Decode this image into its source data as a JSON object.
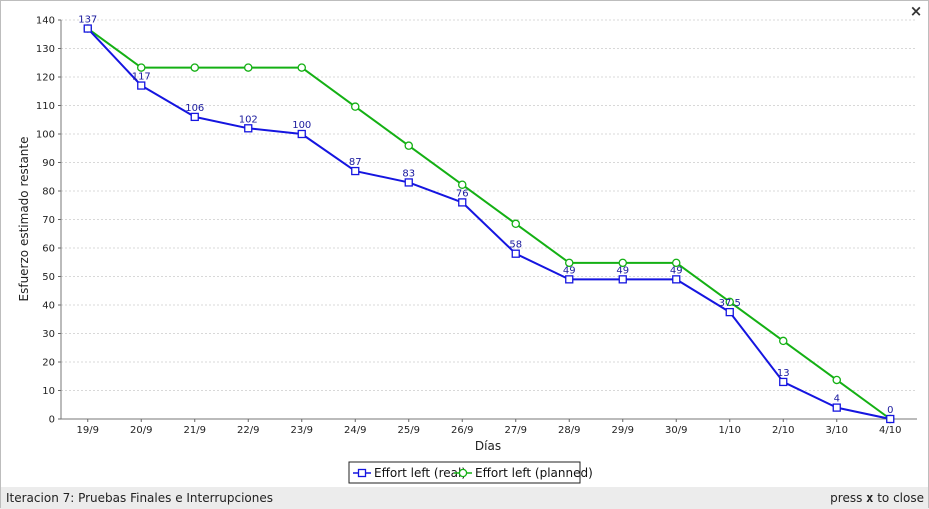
{
  "status_bar": {
    "title": "Iteracion 7: Pruebas Finales e Interrupciones",
    "hint_prefix": "press ",
    "hint_key": "x",
    "hint_suffix": " to close"
  },
  "close_glyph": "×",
  "chart_data": {
    "type": "line",
    "xlabel": "Días",
    "ylabel": "Esfuerzo estimado restante",
    "categories": [
      "19/9",
      "20/9",
      "21/9",
      "22/9",
      "23/9",
      "24/9",
      "25/9",
      "26/9",
      "27/9",
      "28/9",
      "29/9",
      "30/9",
      "1/10",
      "2/10",
      "3/10",
      "4/10"
    ],
    "ylim": [
      0,
      140
    ],
    "yticks": [
      0,
      10,
      20,
      30,
      40,
      50,
      60,
      70,
      80,
      90,
      100,
      110,
      120,
      130,
      140
    ],
    "grid": true,
    "legend_position": "bottom-center",
    "series": [
      {
        "name": "Effort left (real)",
        "color": "#1515e0",
        "marker": "square",
        "values": [
          137,
          117,
          106,
          102,
          100,
          87,
          83,
          76,
          58,
          49,
          49,
          49,
          37.5,
          13,
          4,
          0
        ],
        "labels": [
          "137",
          "117",
          "106",
          "102",
          "100",
          "87",
          "83",
          "76",
          "58",
          "49",
          "49",
          "49",
          "37.5",
          "13",
          "4",
          "0"
        ]
      },
      {
        "name": "Effort left (planned)",
        "color": "#14b014",
        "marker": "circle",
        "values": [
          137,
          123.3,
          123.3,
          123.3,
          123.3,
          109.6,
          95.9,
          82.2,
          68.5,
          54.8,
          54.8,
          54.8,
          41.1,
          27.4,
          13.7,
          0
        ]
      }
    ]
  }
}
